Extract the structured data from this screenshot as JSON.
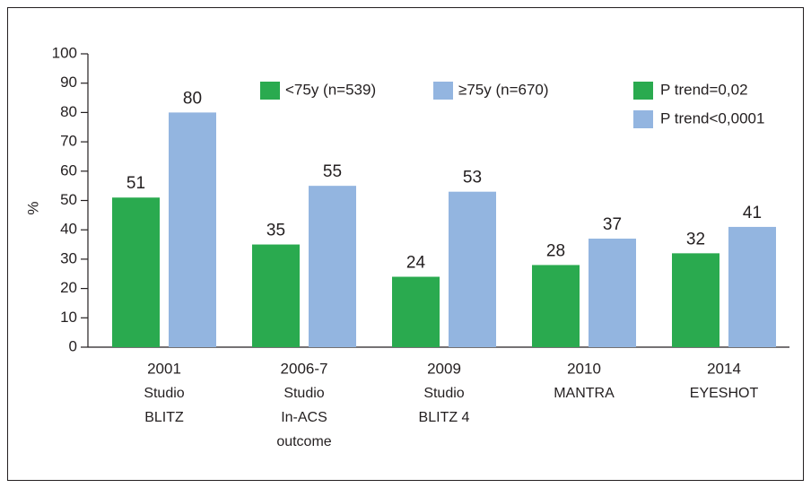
{
  "chart_data": {
    "type": "bar",
    "y_label": "%",
    "categories": [
      [
        "2001",
        "Studio",
        "BLITZ"
      ],
      [
        "2006-7",
        "Studio",
        "In-ACS",
        "outcome"
      ],
      [
        "2009",
        "Studio",
        "BLITZ 4"
      ],
      [
        "2010",
        "MANTRA"
      ],
      [
        "2014",
        "EYESHOT"
      ]
    ],
    "series": [
      {
        "name": "<75y (n=539)",
        "color": "#2aaa4f",
        "values": [
          51,
          35,
          24,
          28,
          32
        ]
      },
      {
        "name": "≥75y (n=670)",
        "color": "#93b5e0",
        "values": [
          80,
          55,
          53,
          37,
          41
        ]
      }
    ],
    "annotations": [
      {
        "text": "P trend=0,02",
        "color": "#2aaa4f"
      },
      {
        "text": "P trend<0,0001",
        "color": "#93b5e0"
      }
    ],
    "ylim": [
      0,
      100
    ],
    "yticks": [
      0,
      10,
      20,
      30,
      40,
      50,
      60,
      70,
      80,
      90,
      100
    ],
    "grid": false
  }
}
